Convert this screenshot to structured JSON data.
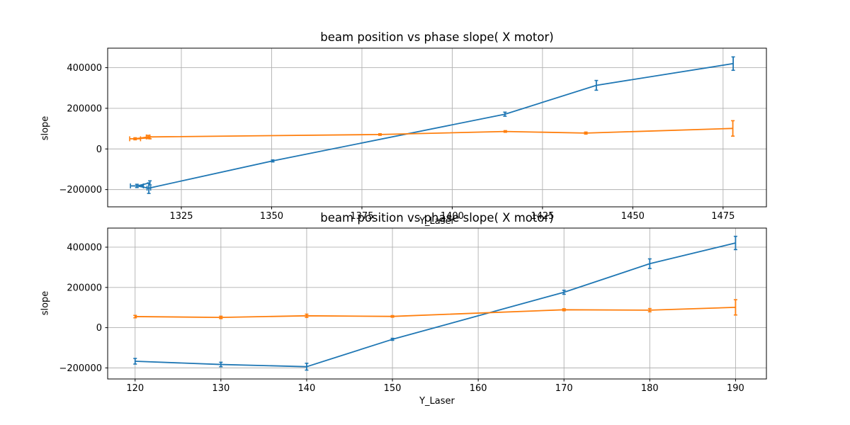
{
  "figure": {
    "background": "#ffffff",
    "grid_color": "#b0b0b0",
    "spine_color": "#000000",
    "text_color": "#000000",
    "series_colors": {
      "blue": "#1f77b4",
      "orange": "#ff7f0e"
    }
  },
  "chart_data": [
    {
      "type": "line",
      "title": "beam position vs phase slope( X motor)",
      "xlabel": "Y_Laser",
      "ylabel": "slope",
      "grid": true,
      "legend": "none",
      "xlim": [
        1304.6,
        1487.0
      ],
      "ylim": [
        -285000,
        496000
      ],
      "xticks": [
        1325,
        1350,
        1375,
        1400,
        1425,
        1450,
        1475
      ],
      "yticks": [
        -200000,
        0,
        200000,
        400000
      ],
      "series": [
        {
          "name": "blue-errorbar-series",
          "color": "#1f77b4",
          "points": [
            [
              1316.3,
              -167000
            ],
            [
              1312.7,
              -182000
            ],
            [
              1316.0,
              -193000
            ],
            [
              1350.3,
              -59000
            ],
            [
              1414.6,
              171000
            ],
            [
              1439.9,
              313000
            ],
            [
              1477.8,
              420000
            ]
          ],
          "yerr": [
            10000,
            8000,
            26000,
            5000,
            10000,
            24000,
            33000
          ],
          "xerr": [
            0,
            1.8,
            0.5,
            0,
            0,
            0,
            0
          ]
        },
        {
          "name": "orange-errorbar-series",
          "color": "#ff7f0e",
          "points": [
            [
              1316.3,
              55000
            ],
            [
              1312.2,
              50000
            ],
            [
              1315.8,
              59000
            ],
            [
              1380.0,
              71000
            ],
            [
              1414.7,
              86000
            ],
            [
              1437.0,
              78000
            ],
            [
              1477.7,
              101000
            ]
          ],
          "yerr": [
            5000,
            5000,
            8000,
            4000,
            4000,
            5000,
            38000
          ],
          "xerr": [
            0,
            1.5,
            0.5,
            0,
            0,
            0,
            0
          ]
        }
      ]
    },
    {
      "type": "line",
      "title": "beam position vs phase slope( X motor)",
      "xlabel": "Y_Laser",
      "ylabel": "slope",
      "grid": true,
      "legend": "none",
      "xlim": [
        116.8,
        193.6
      ],
      "ylim": [
        -255000,
        495000
      ],
      "xticks": [
        120,
        130,
        140,
        150,
        160,
        170,
        180,
        190
      ],
      "yticks": [
        -200000,
        0,
        200000,
        400000
      ],
      "series": [
        {
          "name": "blue-errorbar-series",
          "color": "#1f77b4",
          "points": [
            [
              120,
              -167000
            ],
            [
              130,
              -183000
            ],
            [
              140,
              -194000
            ],
            [
              150,
              -58000
            ],
            [
              170,
              176000
            ],
            [
              180,
              318000
            ],
            [
              190,
              421000
            ]
          ],
          "yerr": [
            14000,
            11000,
            17000,
            5000,
            10000,
            24000,
            33000
          ],
          "xerr": [
            0,
            0,
            0,
            0,
            0,
            0,
            0
          ]
        },
        {
          "name": "orange-errorbar-series",
          "color": "#ff7f0e",
          "points": [
            [
              120,
              55000
            ],
            [
              130,
              51000
            ],
            [
              140,
              59000
            ],
            [
              150,
              56000
            ],
            [
              170,
              89000
            ],
            [
              180,
              87000
            ],
            [
              190,
              101000
            ]
          ],
          "yerr": [
            6000,
            6000,
            8000,
            4000,
            5000,
            8000,
            38000
          ],
          "xerr": [
            0,
            0,
            0,
            0,
            0,
            0,
            0
          ]
        }
      ]
    }
  ]
}
